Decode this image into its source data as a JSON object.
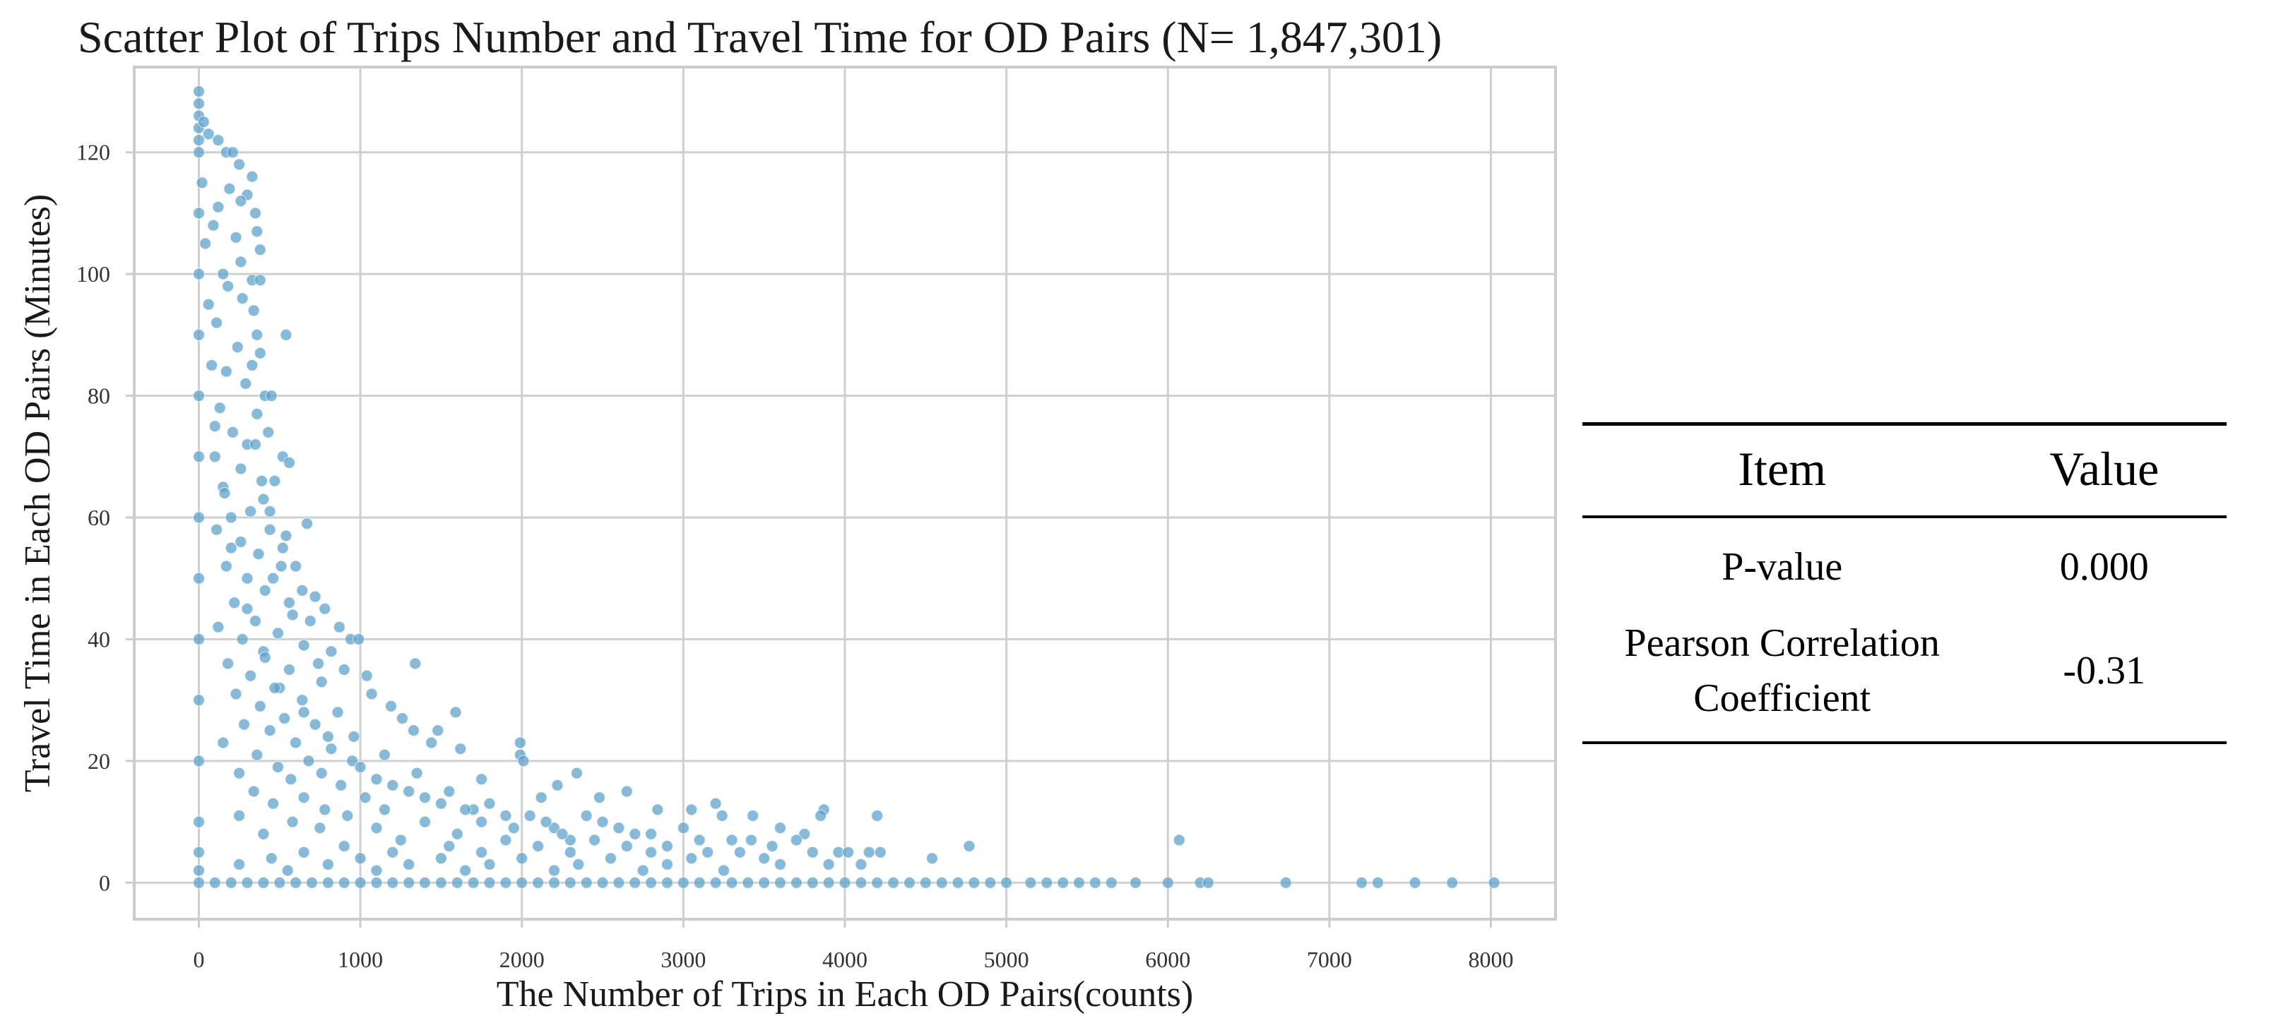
{
  "chart_data": {
    "type": "scatter",
    "title": "Scatter Plot of Trips Number and Travel Time for OD Pairs (N= 1,847,301)",
    "xlabel": "The Number of Trips in Each OD Pairs(counts)",
    "ylabel": "Travel Time in Each OD Pairs (Minutes)",
    "xlim": [
      -400,
      8400
    ],
    "ylim": [
      -6,
      134
    ],
    "xticks": [
      0,
      1000,
      2000,
      3000,
      4000,
      5000,
      6000,
      7000,
      8000
    ],
    "yticks": [
      0,
      20,
      40,
      60,
      80,
      100,
      120
    ],
    "xtick_labels": [
      "0",
      "1000",
      "2000",
      "3000",
      "4000",
      "5000",
      "6000",
      "7000",
      "8000"
    ],
    "ytick_labels": [
      "0",
      "20",
      "40",
      "60",
      "80",
      "100",
      "120"
    ],
    "grid": true,
    "color": "#5fa2cc",
    "series": [
      {
        "points": [
          [
            0,
            130
          ],
          [
            0,
            128
          ],
          [
            0,
            126
          ],
          [
            0,
            124
          ],
          [
            0,
            122
          ],
          [
            0,
            120
          ],
          [
            30,
            125
          ],
          [
            60,
            123
          ],
          [
            120,
            122
          ],
          [
            170,
            120
          ],
          [
            210,
            120
          ],
          [
            250,
            118
          ],
          [
            330,
            116
          ],
          [
            300,
            113
          ],
          [
            350,
            110
          ],
          [
            190,
            114
          ],
          [
            260,
            112
          ],
          [
            120,
            111
          ],
          [
            360,
            107
          ],
          [
            380,
            104
          ],
          [
            260,
            102
          ],
          [
            330,
            99
          ],
          [
            380,
            99
          ],
          [
            270,
            96
          ],
          [
            340,
            94
          ],
          [
            360,
            90
          ],
          [
            540,
            90
          ],
          [
            380,
            87
          ],
          [
            330,
            85
          ],
          [
            410,
            80
          ],
          [
            450,
            80
          ],
          [
            360,
            77
          ],
          [
            430,
            74
          ],
          [
            300,
            72
          ],
          [
            520,
            70
          ],
          [
            560,
            69
          ],
          [
            470,
            66
          ],
          [
            400,
            63
          ],
          [
            440,
            61
          ],
          [
            540,
            57
          ],
          [
            670,
            59
          ],
          [
            520,
            55
          ],
          [
            600,
            52
          ],
          [
            460,
            50
          ],
          [
            640,
            48
          ],
          [
            720,
            47
          ],
          [
            560,
            46
          ],
          [
            780,
            45
          ],
          [
            690,
            43
          ],
          [
            870,
            42
          ],
          [
            940,
            40
          ],
          [
            990,
            40
          ],
          [
            820,
            38
          ],
          [
            1040,
            34
          ],
          [
            740,
            36
          ],
          [
            900,
            35
          ],
          [
            1340,
            36
          ],
          [
            1070,
            31
          ],
          [
            1190,
            29
          ],
          [
            1590,
            28
          ],
          [
            1260,
            27
          ],
          [
            1330,
            25
          ],
          [
            1480,
            25
          ],
          [
            1440,
            23
          ],
          [
            1620,
            22
          ],
          [
            1990,
            23
          ],
          [
            1990,
            21
          ],
          [
            2010,
            20
          ],
          [
            2340,
            18
          ],
          [
            1750,
            17
          ],
          [
            2220,
            16
          ],
          [
            2480,
            14
          ],
          [
            2650,
            15
          ],
          [
            2120,
            14
          ],
          [
            2840,
            12
          ],
          [
            3200,
            13
          ],
          [
            3050,
            12
          ],
          [
            3240,
            11
          ],
          [
            3430,
            11
          ],
          [
            3870,
            12
          ],
          [
            3850,
            11
          ],
          [
            4200,
            11
          ],
          [
            3600,
            9
          ],
          [
            3750,
            8
          ],
          [
            3420,
            7
          ],
          [
            3550,
            6
          ],
          [
            3700,
            7
          ],
          [
            3960,
            5
          ],
          [
            4150,
            5
          ],
          [
            4220,
            5
          ],
          [
            4020,
            5
          ],
          [
            4540,
            4
          ],
          [
            4770,
            6
          ],
          [
            6070,
            7
          ],
          [
            3000,
            9
          ],
          [
            2700,
            8
          ],
          [
            2300,
            7
          ],
          [
            2900,
            6
          ],
          [
            3150,
            5
          ],
          [
            2500,
            10
          ],
          [
            2200,
            9
          ],
          [
            1900,
            11
          ],
          [
            1700,
            12
          ],
          [
            1500,
            13
          ],
          [
            1300,
            15
          ],
          [
            1100,
            17
          ],
          [
            950,
            20
          ],
          [
            800,
            24
          ],
          [
            650,
            28
          ],
          [
            500,
            32
          ],
          [
            400,
            38
          ],
          [
            300,
            45
          ],
          [
            200,
            55
          ],
          [
            150,
            65
          ],
          [
            100,
            75
          ],
          [
            80,
            85
          ],
          [
            60,
            95
          ],
          [
            40,
            105
          ],
          [
            20,
            115
          ],
          [
            0,
            110
          ],
          [
            0,
            100
          ],
          [
            0,
            90
          ],
          [
            0,
            80
          ],
          [
            0,
            70
          ],
          [
            0,
            60
          ],
          [
            0,
            50
          ],
          [
            0,
            40
          ],
          [
            0,
            30
          ],
          [
            0,
            20
          ],
          [
            0,
            10
          ],
          [
            0,
            5
          ],
          [
            0,
            2
          ],
          [
            150,
            100
          ],
          [
            90,
            108
          ],
          [
            230,
            106
          ],
          [
            180,
            98
          ],
          [
            110,
            92
          ],
          [
            240,
            88
          ],
          [
            170,
            84
          ],
          [
            290,
            82
          ],
          [
            130,
            78
          ],
          [
            210,
            74
          ],
          [
            350,
            72
          ],
          [
            100,
            70
          ],
          [
            260,
            68
          ],
          [
            390,
            66
          ],
          [
            160,
            64
          ],
          [
            320,
            61
          ],
          [
            200,
            60
          ],
          [
            110,
            58
          ],
          [
            440,
            58
          ],
          [
            260,
            56
          ],
          [
            370,
            54
          ],
          [
            170,
            52
          ],
          [
            510,
            52
          ],
          [
            300,
            50
          ],
          [
            410,
            48
          ],
          [
            220,
            46
          ],
          [
            580,
            44
          ],
          [
            350,
            43
          ],
          [
            120,
            42
          ],
          [
            490,
            41
          ],
          [
            270,
            40
          ],
          [
            650,
            39
          ],
          [
            410,
            37
          ],
          [
            180,
            36
          ],
          [
            560,
            35
          ],
          [
            320,
            34
          ],
          [
            760,
            33
          ],
          [
            470,
            32
          ],
          [
            230,
            31
          ],
          [
            640,
            30
          ],
          [
            380,
            29
          ],
          [
            860,
            28
          ],
          [
            530,
            27
          ],
          [
            280,
            26
          ],
          [
            720,
            26
          ],
          [
            440,
            25
          ],
          [
            960,
            24
          ],
          [
            600,
            23
          ],
          [
            150,
            23
          ],
          [
            820,
            22
          ],
          [
            360,
            21
          ],
          [
            1150,
            21
          ],
          [
            680,
            20
          ],
          [
            490,
            19
          ],
          [
            1000,
            19
          ],
          [
            250,
            18
          ],
          [
            760,
            18
          ],
          [
            1350,
            18
          ],
          [
            570,
            17
          ],
          [
            1200,
            16
          ],
          [
            880,
            16
          ],
          [
            340,
            15
          ],
          [
            1550,
            15
          ],
          [
            650,
            14
          ],
          [
            1030,
            14
          ],
          [
            1400,
            14
          ],
          [
            460,
            13
          ],
          [
            1800,
            13
          ],
          [
            780,
            12
          ],
          [
            1150,
            12
          ],
          [
            1650,
            12
          ],
          [
            250,
            11
          ],
          [
            2050,
            11
          ],
          [
            920,
            11
          ],
          [
            1400,
            10
          ],
          [
            1750,
            10
          ],
          [
            580,
            10
          ],
          [
            2150,
            10
          ],
          [
            2400,
            11
          ],
          [
            1100,
            9
          ],
          [
            1950,
            9
          ],
          [
            2600,
            9
          ],
          [
            750,
            9
          ],
          [
            1600,
            8
          ],
          [
            2250,
            8
          ],
          [
            2800,
            8
          ],
          [
            400,
            8
          ],
          [
            1250,
            7
          ],
          [
            1900,
            7
          ],
          [
            2450,
            7
          ],
          [
            3100,
            7
          ],
          [
            900,
            6
          ],
          [
            1550,
            6
          ],
          [
            2100,
            6
          ],
          [
            2650,
            6
          ],
          [
            3300,
            7
          ],
          [
            650,
            5
          ],
          [
            1200,
            5
          ],
          [
            1750,
            5
          ],
          [
            2300,
            5
          ],
          [
            2800,
            5
          ],
          [
            3350,
            5
          ],
          [
            3800,
            5
          ],
          [
            450,
            4
          ],
          [
            1000,
            4
          ],
          [
            1500,
            4
          ],
          [
            2000,
            4
          ],
          [
            2550,
            4
          ],
          [
            3050,
            4
          ],
          [
            3500,
            4
          ],
          [
            250,
            3
          ],
          [
            800,
            3
          ],
          [
            1300,
            3
          ],
          [
            1800,
            3
          ],
          [
            2350,
            3
          ],
          [
            2900,
            3
          ],
          [
            3600,
            3
          ],
          [
            550,
            2
          ],
          [
            1100,
            2
          ],
          [
            1650,
            2
          ],
          [
            2200,
            2
          ],
          [
            2750,
            2
          ],
          [
            3250,
            2
          ],
          [
            3900,
            3
          ],
          [
            4100,
            3
          ],
          [
            0,
            0
          ],
          [
            100,
            0
          ],
          [
            200,
            0
          ],
          [
            300,
            0
          ],
          [
            400,
            0
          ],
          [
            500,
            0
          ],
          [
            600,
            0
          ],
          [
            700,
            0
          ],
          [
            800,
            0
          ],
          [
            900,
            0
          ],
          [
            1000,
            0
          ],
          [
            1100,
            0
          ],
          [
            1200,
            0
          ],
          [
            1300,
            0
          ],
          [
            1400,
            0
          ],
          [
            1500,
            0
          ],
          [
            1600,
            0
          ],
          [
            1700,
            0
          ],
          [
            1800,
            0
          ],
          [
            1900,
            0
          ],
          [
            2000,
            0
          ],
          [
            2100,
            0
          ],
          [
            2200,
            0
          ],
          [
            2300,
            0
          ],
          [
            2400,
            0
          ],
          [
            2500,
            0
          ],
          [
            2600,
            0
          ],
          [
            2700,
            0
          ],
          [
            2800,
            0
          ],
          [
            2900,
            0
          ],
          [
            3000,
            0
          ],
          [
            3100,
            0
          ],
          [
            3200,
            0
          ],
          [
            3300,
            0
          ],
          [
            3400,
            0
          ],
          [
            3500,
            0
          ],
          [
            3600,
            0
          ],
          [
            3700,
            0
          ],
          [
            3800,
            0
          ],
          [
            3900,
            0
          ],
          [
            4000,
            0
          ],
          [
            4100,
            0
          ],
          [
            4200,
            0
          ],
          [
            4300,
            0
          ],
          [
            4400,
            0
          ],
          [
            4500,
            0
          ],
          [
            4600,
            0
          ],
          [
            4700,
            0
          ],
          [
            4800,
            0
          ],
          [
            4900,
            0
          ],
          [
            5000,
            0
          ],
          [
            5150,
            0
          ],
          [
            5250,
            0
          ],
          [
            5350,
            0
          ],
          [
            5450,
            0
          ],
          [
            5550,
            0
          ],
          [
            5650,
            0
          ],
          [
            5800,
            0
          ],
          [
            6000,
            0
          ],
          [
            6200,
            0
          ],
          [
            6250,
            0
          ],
          [
            6730,
            0
          ],
          [
            7200,
            0
          ],
          [
            7300,
            0
          ],
          [
            7530,
            0
          ],
          [
            7760,
            0
          ],
          [
            8020,
            0
          ]
        ]
      }
    ]
  },
  "stats_table": {
    "headers": [
      "Item",
      "Value"
    ],
    "rows": [
      {
        "item": "P-value",
        "value": "0.000"
      },
      {
        "item_line1": "Pearson Correlation",
        "item_line2": "Coefficient",
        "value": "-0.31"
      }
    ]
  }
}
